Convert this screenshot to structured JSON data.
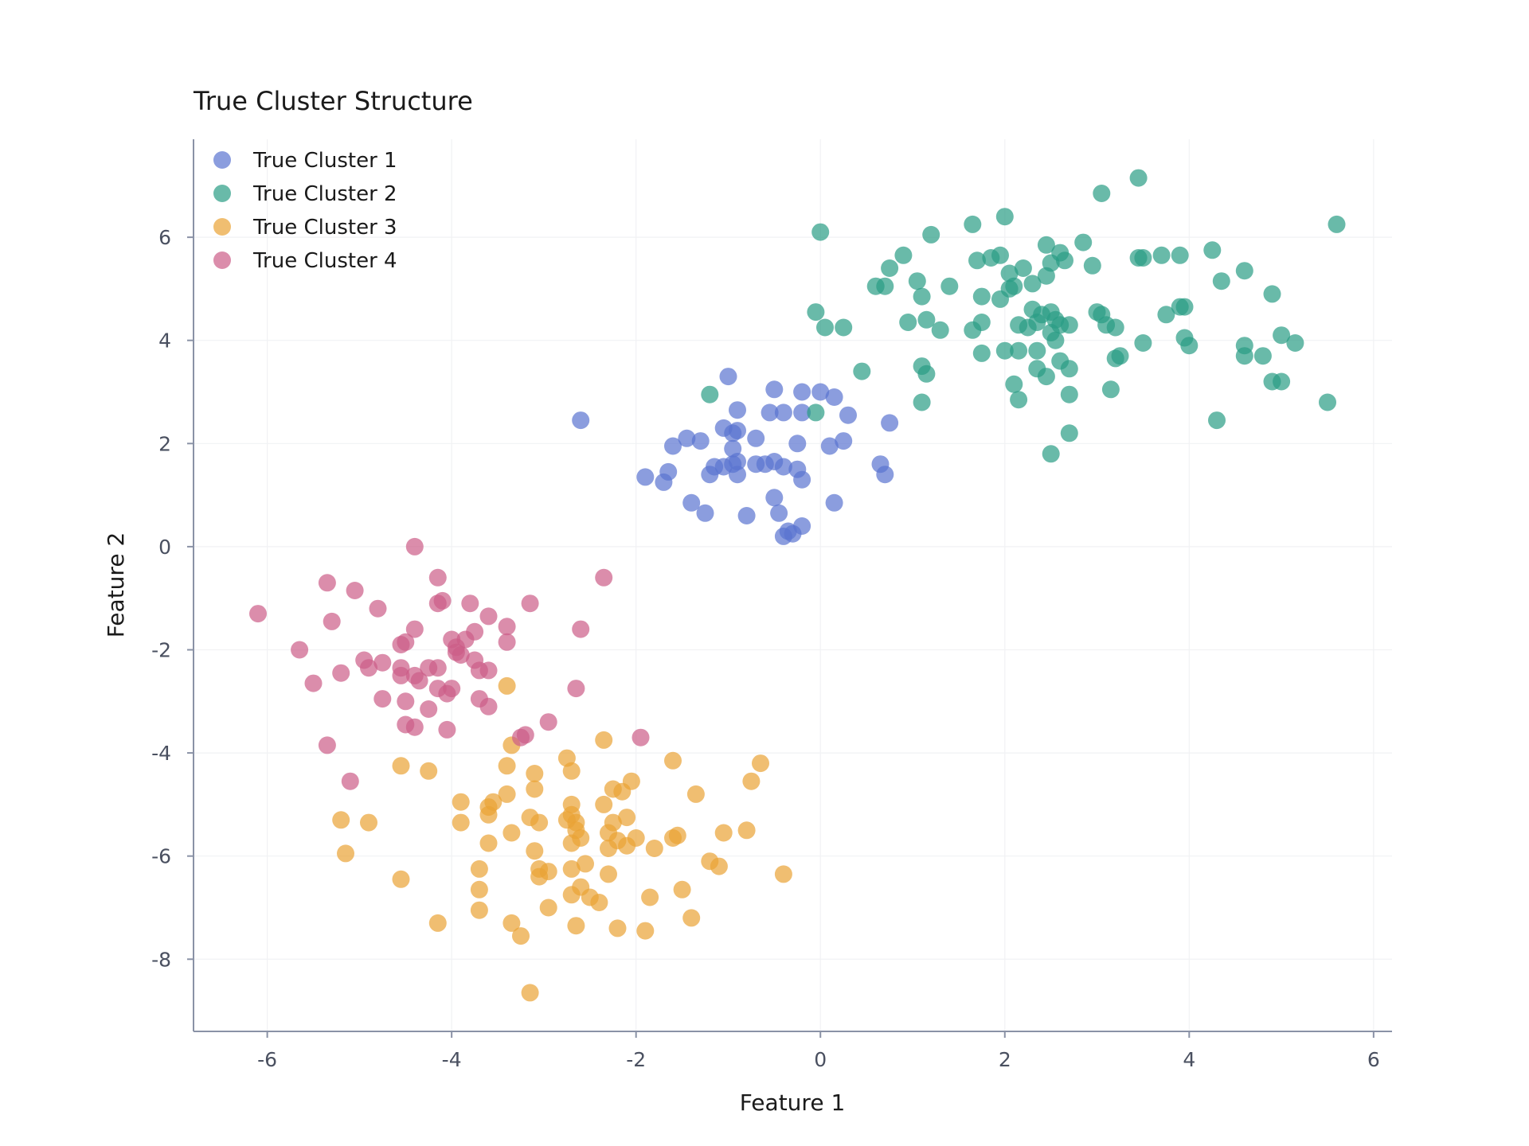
{
  "chart_data": {
    "type": "scatter",
    "title": "True Cluster Structure",
    "xlabel": "Feature 1",
    "ylabel": "Feature 2",
    "xlim": [
      -6.8,
      6.2
    ],
    "ylim": [
      -9.4,
      7.9
    ],
    "xticks": [
      -6,
      -4,
      -2,
      0,
      2,
      4,
      6
    ],
    "yticks": [
      -8,
      -6,
      -4,
      -2,
      0,
      2,
      4,
      6
    ],
    "grid": true,
    "legend_position": "top-left",
    "series": [
      {
        "name": "True Cluster 1",
        "color": "#5a73d0",
        "points": [
          [
            -2.6,
            2.45
          ],
          [
            -1.0,
            3.3
          ],
          [
            -0.5,
            3.05
          ],
          [
            -0.2,
            3.0
          ],
          [
            0.0,
            3.0
          ],
          [
            0.15,
            2.9
          ],
          [
            -0.9,
            2.65
          ],
          [
            -0.55,
            2.6
          ],
          [
            -0.4,
            2.6
          ],
          [
            -0.2,
            2.6
          ],
          [
            0.3,
            2.55
          ],
          [
            0.75,
            2.4
          ],
          [
            -1.05,
            2.3
          ],
          [
            -0.9,
            2.25
          ],
          [
            -0.95,
            2.2
          ],
          [
            -1.45,
            2.1
          ],
          [
            -1.3,
            2.05
          ],
          [
            -0.7,
            2.1
          ],
          [
            0.25,
            2.05
          ],
          [
            -0.25,
            2.0
          ],
          [
            -1.6,
            1.95
          ],
          [
            -0.95,
            1.9
          ],
          [
            0.1,
            1.95
          ],
          [
            -1.15,
            1.55
          ],
          [
            -1.05,
            1.55
          ],
          [
            -0.95,
            1.6
          ],
          [
            -0.9,
            1.65
          ],
          [
            -0.7,
            1.6
          ],
          [
            -0.6,
            1.6
          ],
          [
            -0.5,
            1.65
          ],
          [
            -0.4,
            1.55
          ],
          [
            -1.2,
            1.4
          ],
          [
            -0.9,
            1.4
          ],
          [
            -0.25,
            1.5
          ],
          [
            -0.2,
            1.3
          ],
          [
            -1.9,
            1.35
          ],
          [
            -1.65,
            1.45
          ],
          [
            -1.7,
            1.25
          ],
          [
            0.65,
            1.6
          ],
          [
            0.7,
            1.4
          ],
          [
            -1.4,
            0.85
          ],
          [
            -1.25,
            0.65
          ],
          [
            -0.8,
            0.6
          ],
          [
            -0.5,
            0.95
          ],
          [
            -0.45,
            0.65
          ],
          [
            0.15,
            0.85
          ],
          [
            -0.4,
            0.2
          ],
          [
            -0.3,
            0.25
          ],
          [
            -0.2,
            0.4
          ],
          [
            -0.35,
            0.3
          ]
        ]
      },
      {
        "name": "True Cluster 2",
        "color": "#2a9d84",
        "points": [
          [
            3.45,
            7.15
          ],
          [
            3.05,
            6.85
          ],
          [
            0.0,
            6.1
          ],
          [
            1.2,
            6.05
          ],
          [
            1.65,
            6.25
          ],
          [
            2.0,
            6.4
          ],
          [
            2.45,
            5.85
          ],
          [
            2.85,
            5.9
          ],
          [
            5.6,
            6.25
          ],
          [
            0.9,
            5.65
          ],
          [
            0.75,
            5.4
          ],
          [
            1.7,
            5.55
          ],
          [
            1.85,
            5.6
          ],
          [
            1.95,
            5.65
          ],
          [
            2.05,
            5.3
          ],
          [
            2.2,
            5.4
          ],
          [
            2.5,
            5.5
          ],
          [
            2.6,
            5.7
          ],
          [
            2.65,
            5.55
          ],
          [
            2.95,
            5.45
          ],
          [
            3.45,
            5.6
          ],
          [
            3.5,
            5.6
          ],
          [
            3.7,
            5.65
          ],
          [
            3.9,
            5.65
          ],
          [
            4.25,
            5.75
          ],
          [
            4.6,
            5.35
          ],
          [
            0.6,
            5.05
          ],
          [
            0.7,
            5.05
          ],
          [
            1.05,
            5.15
          ],
          [
            1.1,
            4.85
          ],
          [
            1.4,
            5.05
          ],
          [
            1.75,
            4.85
          ],
          [
            1.95,
            4.8
          ],
          [
            2.1,
            5.05
          ],
          [
            2.05,
            5.0
          ],
          [
            2.3,
            5.1
          ],
          [
            2.45,
            5.25
          ],
          [
            4.35,
            5.15
          ],
          [
            4.9,
            4.9
          ],
          [
            -0.05,
            4.55
          ],
          [
            0.05,
            4.25
          ],
          [
            0.25,
            4.25
          ],
          [
            0.95,
            4.35
          ],
          [
            1.15,
            4.4
          ],
          [
            1.3,
            4.2
          ],
          [
            1.65,
            4.2
          ],
          [
            1.75,
            4.35
          ],
          [
            2.15,
            4.3
          ],
          [
            2.3,
            4.6
          ],
          [
            2.35,
            4.35
          ],
          [
            2.4,
            4.5
          ],
          [
            2.5,
            4.55
          ],
          [
            2.55,
            4.4
          ],
          [
            2.6,
            4.3
          ],
          [
            2.7,
            4.3
          ],
          [
            2.25,
            4.25
          ],
          [
            2.5,
            4.15
          ],
          [
            3.0,
            4.55
          ],
          [
            3.05,
            4.5
          ],
          [
            3.1,
            4.3
          ],
          [
            3.2,
            4.25
          ],
          [
            3.75,
            4.5
          ],
          [
            3.95,
            4.65
          ],
          [
            3.9,
            4.65
          ],
          [
            0.45,
            3.4
          ],
          [
            1.1,
            3.5
          ],
          [
            1.15,
            3.35
          ],
          [
            1.75,
            3.75
          ],
          [
            2.0,
            3.8
          ],
          [
            2.15,
            3.8
          ],
          [
            2.35,
            3.8
          ],
          [
            2.55,
            4.0
          ],
          [
            2.6,
            3.6
          ],
          [
            2.7,
            3.45
          ],
          [
            2.35,
            3.45
          ],
          [
            2.45,
            3.3
          ],
          [
            3.2,
            3.65
          ],
          [
            3.25,
            3.7
          ],
          [
            3.5,
            3.95
          ],
          [
            3.95,
            4.05
          ],
          [
            4.0,
            3.9
          ],
          [
            4.6,
            3.9
          ],
          [
            4.6,
            3.7
          ],
          [
            4.8,
            3.7
          ],
          [
            5.0,
            4.1
          ],
          [
            5.15,
            3.95
          ],
          [
            4.9,
            3.2
          ],
          [
            5.0,
            3.2
          ],
          [
            2.1,
            3.15
          ],
          [
            2.15,
            2.85
          ],
          [
            2.7,
            2.95
          ],
          [
            3.15,
            3.05
          ],
          [
            -1.2,
            2.95
          ],
          [
            1.1,
            2.8
          ],
          [
            -0.05,
            2.6
          ],
          [
            5.5,
            2.8
          ],
          [
            4.3,
            2.45
          ],
          [
            2.7,
            2.2
          ],
          [
            2.5,
            1.8
          ]
        ]
      },
      {
        "name": "True Cluster 3",
        "color": "#eaa235",
        "points": [
          [
            -3.4,
            -2.7
          ],
          [
            -2.35,
            -3.75
          ],
          [
            -3.35,
            -3.85
          ],
          [
            -0.65,
            -4.2
          ],
          [
            -1.6,
            -4.15
          ],
          [
            -2.75,
            -4.1
          ],
          [
            -3.4,
            -4.25
          ],
          [
            -4.55,
            -4.25
          ],
          [
            -4.25,
            -4.35
          ],
          [
            -3.1,
            -4.4
          ],
          [
            -2.7,
            -4.35
          ],
          [
            -0.75,
            -4.55
          ],
          [
            -2.05,
            -4.55
          ],
          [
            -2.15,
            -4.75
          ],
          [
            -2.25,
            -4.7
          ],
          [
            -1.35,
            -4.8
          ],
          [
            -3.1,
            -4.7
          ],
          [
            -3.4,
            -4.8
          ],
          [
            -3.55,
            -4.95
          ],
          [
            -3.6,
            -5.05
          ],
          [
            -3.9,
            -4.95
          ],
          [
            -2.7,
            -5.0
          ],
          [
            -2.35,
            -5.0
          ],
          [
            -3.6,
            -5.2
          ],
          [
            -3.15,
            -5.25
          ],
          [
            -3.05,
            -5.35
          ],
          [
            -2.7,
            -5.2
          ],
          [
            -2.75,
            -5.3
          ],
          [
            -2.65,
            -5.35
          ],
          [
            -2.1,
            -5.25
          ],
          [
            -2.25,
            -5.35
          ],
          [
            -5.2,
            -5.3
          ],
          [
            -4.9,
            -5.35
          ],
          [
            -3.9,
            -5.35
          ],
          [
            -2.65,
            -5.5
          ],
          [
            -2.3,
            -5.55
          ],
          [
            -2.6,
            -5.65
          ],
          [
            -2.7,
            -5.75
          ],
          [
            -2.0,
            -5.65
          ],
          [
            -2.2,
            -5.7
          ],
          [
            -2.1,
            -5.8
          ],
          [
            -1.6,
            -5.65
          ],
          [
            -1.55,
            -5.6
          ],
          [
            -1.05,
            -5.55
          ],
          [
            -0.8,
            -5.5
          ],
          [
            -3.35,
            -5.55
          ],
          [
            -3.6,
            -5.75
          ],
          [
            -2.3,
            -5.85
          ],
          [
            -1.8,
            -5.85
          ],
          [
            -3.1,
            -5.9
          ],
          [
            -5.15,
            -5.95
          ],
          [
            -2.55,
            -6.15
          ],
          [
            -2.7,
            -6.25
          ],
          [
            -1.2,
            -6.1
          ],
          [
            -1.1,
            -6.2
          ],
          [
            -3.7,
            -6.25
          ],
          [
            -3.05,
            -6.25
          ],
          [
            -2.95,
            -6.3
          ],
          [
            -3.05,
            -6.4
          ],
          [
            -2.3,
            -6.35
          ],
          [
            -0.4,
            -6.35
          ],
          [
            -4.55,
            -6.45
          ],
          [
            -3.7,
            -6.65
          ],
          [
            -2.7,
            -6.75
          ],
          [
            -2.5,
            -6.8
          ],
          [
            -2.6,
            -6.6
          ],
          [
            -2.4,
            -6.9
          ],
          [
            -1.85,
            -6.8
          ],
          [
            -1.5,
            -6.65
          ],
          [
            -3.7,
            -7.05
          ],
          [
            -2.95,
            -7.0
          ],
          [
            -1.4,
            -7.2
          ],
          [
            -4.15,
            -7.3
          ],
          [
            -3.35,
            -7.3
          ],
          [
            -2.65,
            -7.35
          ],
          [
            -2.2,
            -7.4
          ],
          [
            -1.9,
            -7.45
          ],
          [
            -3.25,
            -7.55
          ],
          [
            -3.15,
            -8.65
          ]
        ]
      },
      {
        "name": "True Cluster 4",
        "color": "#cc5c88",
        "points": [
          [
            -4.4,
            0.0
          ],
          [
            -4.15,
            -0.6
          ],
          [
            -2.35,
            -0.6
          ],
          [
            -5.35,
            -0.7
          ],
          [
            -5.05,
            -0.85
          ],
          [
            -4.1,
            -1.05
          ],
          [
            -4.15,
            -1.1
          ],
          [
            -3.8,
            -1.1
          ],
          [
            -3.15,
            -1.1
          ],
          [
            -4.8,
            -1.2
          ],
          [
            -6.1,
            -1.3
          ],
          [
            -3.6,
            -1.35
          ],
          [
            -5.3,
            -1.45
          ],
          [
            -4.4,
            -1.6
          ],
          [
            -3.75,
            -1.65
          ],
          [
            -3.4,
            -1.55
          ],
          [
            -2.6,
            -1.6
          ],
          [
            -4.0,
            -1.8
          ],
          [
            -4.5,
            -1.85
          ],
          [
            -4.55,
            -1.9
          ],
          [
            -3.95,
            -1.95
          ],
          [
            -3.85,
            -1.8
          ],
          [
            -3.4,
            -1.85
          ],
          [
            -5.65,
            -2.0
          ],
          [
            -4.95,
            -2.2
          ],
          [
            -4.75,
            -2.25
          ],
          [
            -3.95,
            -2.05
          ],
          [
            -3.9,
            -2.1
          ],
          [
            -3.75,
            -2.2
          ],
          [
            -4.55,
            -2.35
          ],
          [
            -4.25,
            -2.35
          ],
          [
            -4.15,
            -2.35
          ],
          [
            -3.7,
            -2.4
          ],
          [
            -3.6,
            -2.4
          ],
          [
            -4.9,
            -2.35
          ],
          [
            -5.2,
            -2.45
          ],
          [
            -4.55,
            -2.5
          ],
          [
            -4.4,
            -2.5
          ],
          [
            -4.35,
            -2.6
          ],
          [
            -5.5,
            -2.65
          ],
          [
            -4.15,
            -2.75
          ],
          [
            -4.0,
            -2.75
          ],
          [
            -4.05,
            -2.85
          ],
          [
            -2.65,
            -2.75
          ],
          [
            -4.75,
            -2.95
          ],
          [
            -4.5,
            -3.0
          ],
          [
            -3.7,
            -2.95
          ],
          [
            -3.6,
            -3.1
          ],
          [
            -4.25,
            -3.15
          ],
          [
            -4.5,
            -3.45
          ],
          [
            -4.4,
            -3.5
          ],
          [
            -4.05,
            -3.55
          ],
          [
            -2.95,
            -3.4
          ],
          [
            -3.2,
            -3.65
          ],
          [
            -3.25,
            -3.7
          ],
          [
            -1.95,
            -3.7
          ],
          [
            -5.35,
            -3.85
          ],
          [
            -5.1,
            -4.55
          ]
        ]
      }
    ]
  }
}
